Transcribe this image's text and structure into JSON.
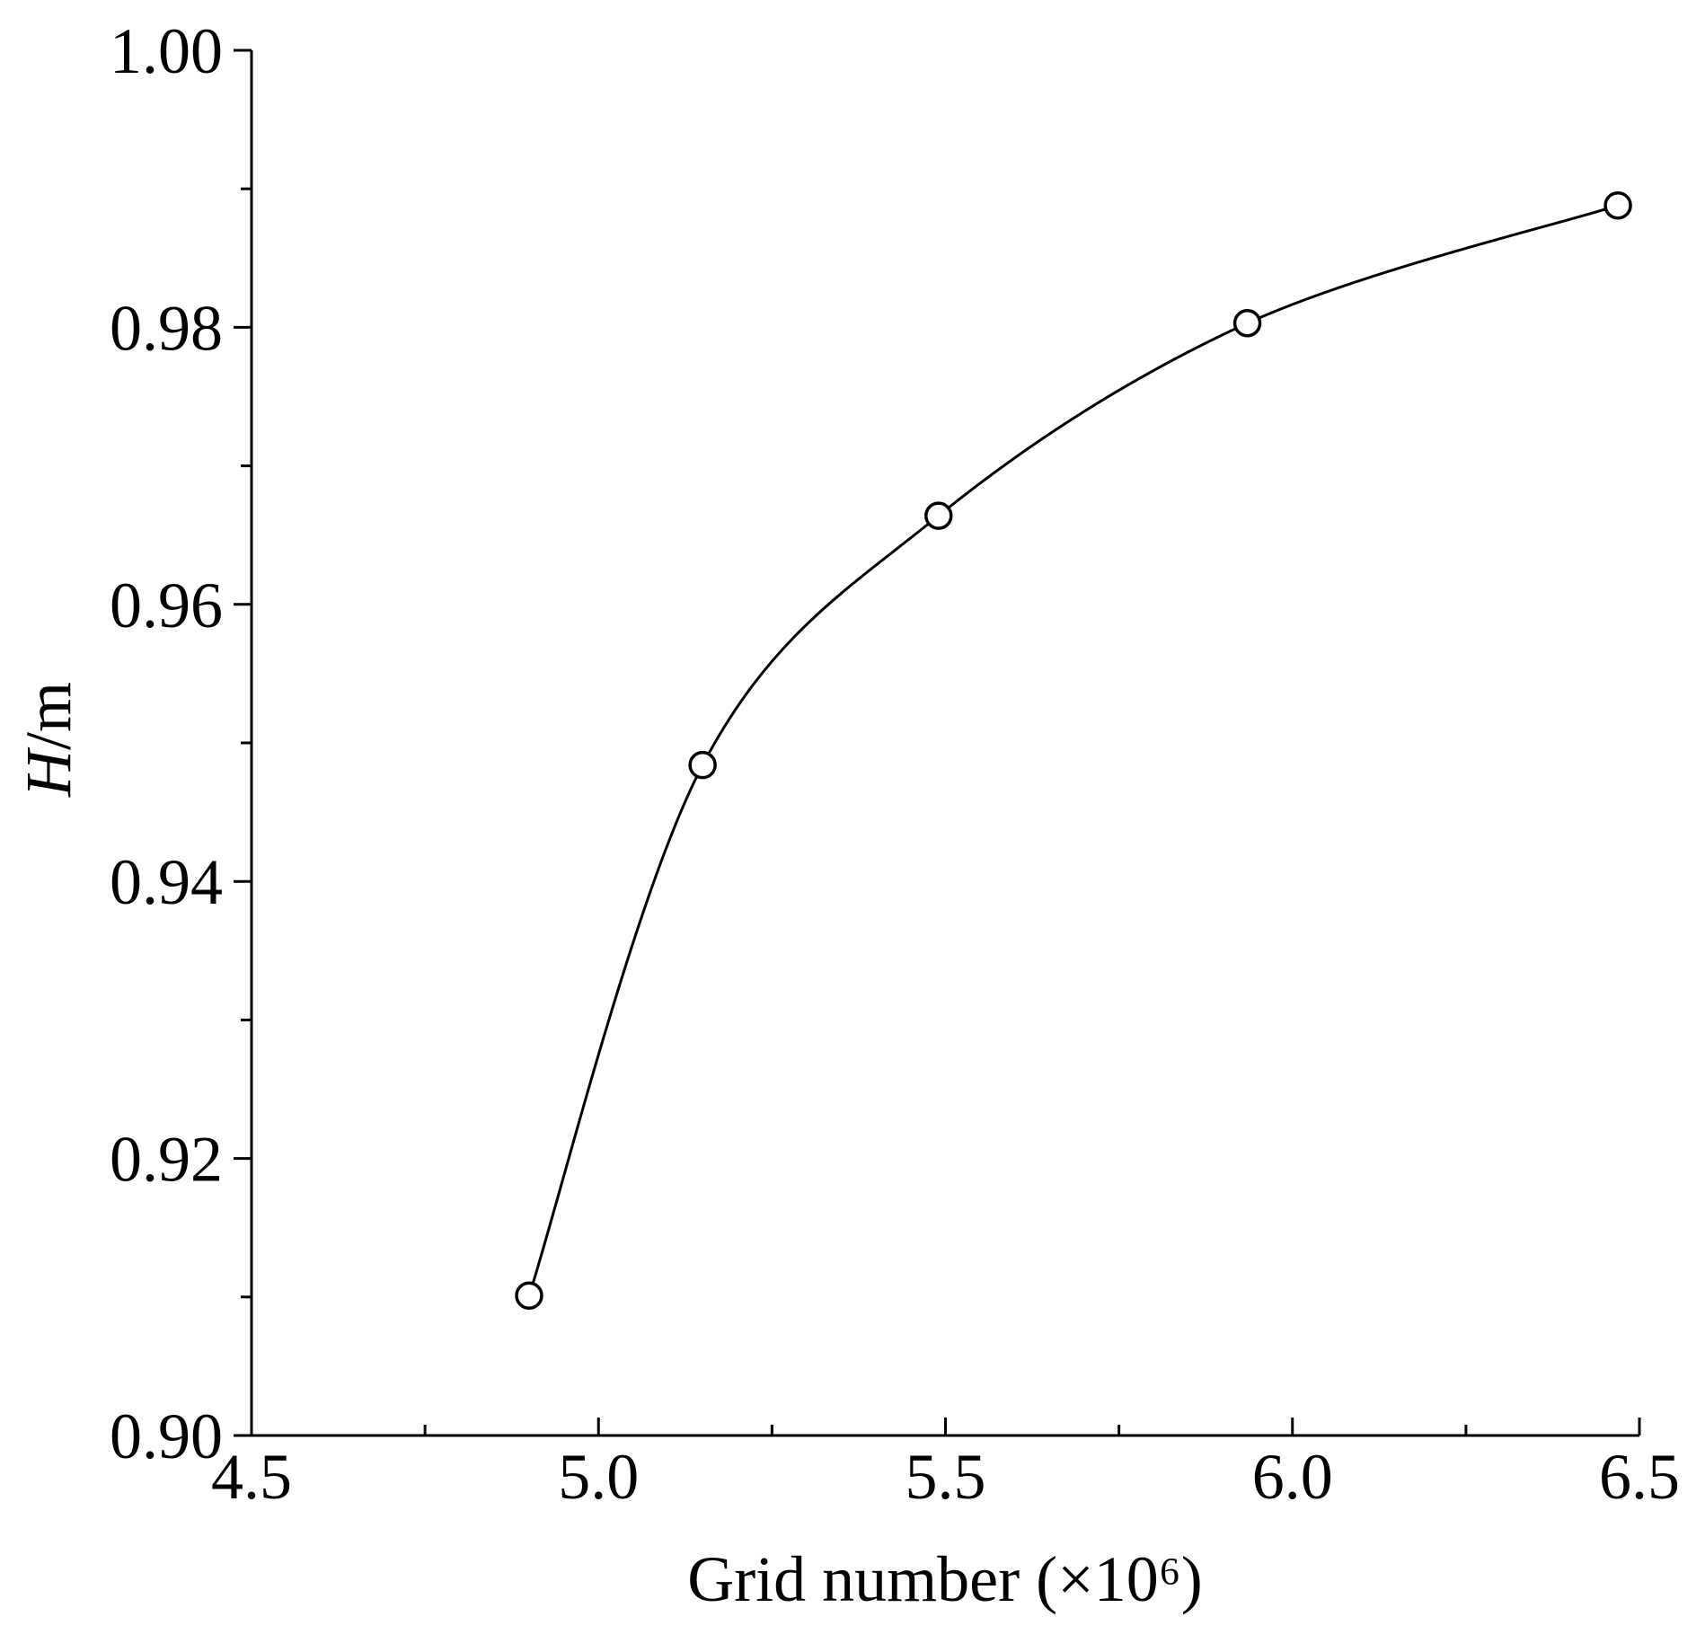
{
  "chart_data": {
    "type": "line",
    "x_label": "Grid number (×10⁶)",
    "y_label_variable": "H",
    "y_label_unit": "/m",
    "x": [
      4.9,
      5.15,
      5.49,
      5.935,
      6.469
    ],
    "series": [
      {
        "color": "#000000",
        "values": [
          0.9101,
          0.9484,
          0.9664,
          0.9803,
          0.9888
        ]
      }
    ],
    "marker": "open-circle",
    "smooth": true,
    "xlim": [
      4.5,
      6.5
    ],
    "xticks": [
      4.5,
      {
        "value": 5,
        "label": "5.0"
      },
      5.5,
      {
        "value": 6,
        "label": "6.0"
      },
      6.5
    ],
    "xminorticks": [
      4.75,
      5.25,
      5.75,
      6.25
    ],
    "ylim": [
      0.9,
      1.0
    ],
    "yticks": [
      {
        "value": 0.9,
        "label": "0.90"
      },
      0.92,
      0.94,
      0.96,
      0.98,
      {
        "value": 1.0,
        "label": "1.00"
      }
    ],
    "yminorticks": [
      0.91,
      0.93,
      0.95,
      0.97,
      0.99
    ],
    "grid": false
  }
}
